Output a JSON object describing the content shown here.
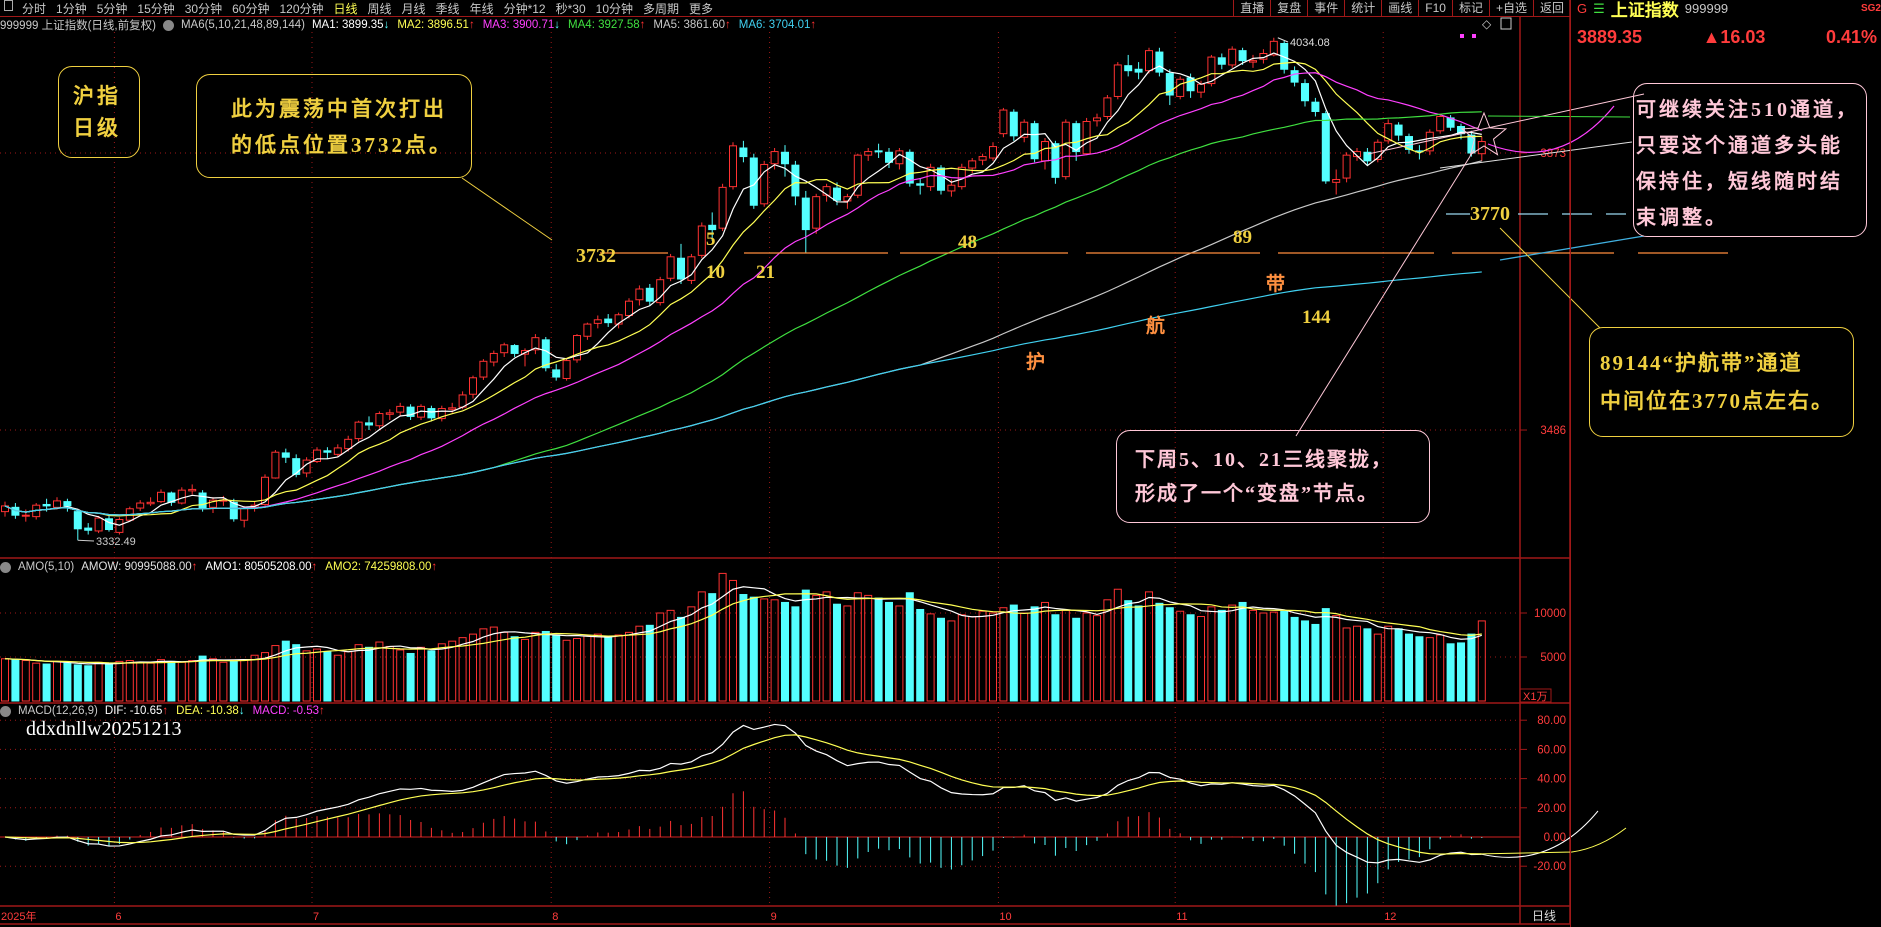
{
  "toolbar": {
    "periods": [
      "分时",
      "1分钟",
      "5分钟",
      "15分钟",
      "30分钟",
      "60分钟",
      "120分钟",
      "日线",
      "周线",
      "月线",
      "季线",
      "年线",
      "分钟*12",
      "秒*30",
      "10分钟",
      "多周期",
      "更多"
    ],
    "active": "日线",
    "right_buttons": [
      "直播",
      "复盘",
      "事件",
      "统计",
      "画线",
      "F10",
      "标记",
      "+自选",
      "返回"
    ]
  },
  "legend": {
    "title": "999999 上证指数(日线,前复权)",
    "indicator": "MA6(5,10,21,48,89,144)",
    "ma": [
      {
        "label": "MA1: 3899.35",
        "dir": "down",
        "color": "#ffffff"
      },
      {
        "label": "MA2: 3896.51",
        "dir": "up",
        "color": "#ffff54"
      },
      {
        "label": "MA3: 3900.71",
        "dir": "down",
        "color": "#ff40ff"
      },
      {
        "label": "MA4: 3927.58",
        "dir": "up",
        "color": "#40e040"
      },
      {
        "label": "MA5: 3861.60",
        "dir": "up",
        "color": "#c8c8c8"
      },
      {
        "label": "MA6: 3704.01",
        "dir": "up",
        "color": "#40d0f0"
      }
    ]
  },
  "amo_legend": {
    "title": "AMO(5,10)",
    "items": [
      {
        "label": "AMOW: 90995088.00",
        "dir": "up",
        "color": "#e0e0e0"
      },
      {
        "label": "AMO1: 80505208.00",
        "dir": "up",
        "color": "#ffffff"
      },
      {
        "label": "AMO2: 74259808.00",
        "dir": "up",
        "color": "#ffff54"
      }
    ]
  },
  "macd_legend": {
    "title": "MACD(12,26,9)",
    "items": [
      {
        "label": "DIF: -10.65",
        "dir": "up",
        "color": "#ffffff"
      },
      {
        "label": "DEA: -10.38",
        "dir": "down",
        "color": "#ffff54"
      },
      {
        "label": "MACD: -0.53",
        "dir": "up",
        "color": "#ff40ff"
      }
    ]
  },
  "quote": {
    "market_icon": "G",
    "menu_icon": "☰",
    "name": "上证指数",
    "code": "999999",
    "tag": "SG2",
    "price": "3889.35",
    "change": "▲16.03",
    "pct": "0.41%"
  },
  "notes": {
    "level_box": [
      "沪指",
      "日级"
    ],
    "low_box": [
      "此为震荡中首次打出",
      "的低点位置3732点。"
    ],
    "node_box": [
      "下周5、10、21三线聚拢，",
      "形成了一个“变盘”节点。"
    ],
    "channel_box": [
      "可继续关注510通道，",
      "只要这个通道多头能",
      "保持住，短线随时结",
      "束调整。"
    ],
    "band_box": [
      "89144“护航带”通道",
      "中间位在3770点左右。"
    ],
    "labels": {
      "l3732": "3732",
      "ma5": "5",
      "ma10": "10",
      "ma21": "21",
      "ma48": "48",
      "ma89": "89",
      "ma144": "144",
      "hu": "护",
      "hang": "航",
      "dai": "带",
      "l3770": "3770"
    },
    "watermark": "ddxdnllw20251213"
  },
  "colors": {
    "up": "#ff3232",
    "down": "#54ffff",
    "grid": "#a01818",
    "axis_text": "#ff3c3c",
    "note_yellow": "#f0d040",
    "note_pink": "#ffc8d8"
  },
  "chart_data": {
    "type": "candlestick",
    "title": "999999 上证指数(日线,前复权)",
    "x_labels": [
      {
        "index": 0,
        "label": "2025年"
      },
      {
        "index": 11,
        "label": "6"
      },
      {
        "index": 30,
        "label": "7"
      },
      {
        "index": 53,
        "label": "8"
      },
      {
        "index": 74,
        "label": "9"
      },
      {
        "index": 96,
        "label": "10"
      },
      {
        "index": 113,
        "label": "11"
      },
      {
        "index": 133,
        "label": "12"
      }
    ],
    "period_label": "日线",
    "price_ticks": [
      "3873",
      "3486"
    ],
    "price_range": [
      3311,
      4042
    ],
    "high_label": "4034.08",
    "low_label": "3332.49",
    "amount_unit": "X1万",
    "amount_ticks": [
      "10000",
      "5000"
    ],
    "macd_ticks": [
      "80.00",
      "60.00",
      "40.00",
      "20.00",
      "0.00",
      "-20.00"
    ],
    "ma_periods": [
      5,
      10,
      21,
      48,
      89,
      144
    ],
    "ref_lines": [
      3732,
      3770
    ],
    "ohlc": [
      [
        3372,
        3386,
        3365,
        3380
      ],
      [
        3378,
        3384,
        3362,
        3367
      ],
      [
        3366,
        3375,
        3358,
        3367
      ],
      [
        3365,
        3384,
        3361,
        3381
      ],
      [
        3382,
        3390,
        3372,
        3380
      ],
      [
        3378,
        3392,
        3375,
        3387
      ],
      [
        3386,
        3390,
        3372,
        3380
      ],
      [
        3372,
        3376,
        3332,
        3348
      ],
      [
        3349,
        3356,
        3340,
        3346
      ],
      [
        3345,
        3366,
        3342,
        3363
      ],
      [
        3362,
        3368,
        3344,
        3347
      ],
      [
        3343,
        3364,
        3340,
        3361
      ],
      [
        3360,
        3379,
        3358,
        3376
      ],
      [
        3377,
        3388,
        3373,
        3384
      ],
      [
        3383,
        3392,
        3380,
        3385
      ],
      [
        3386,
        3403,
        3384,
        3399
      ],
      [
        3398,
        3400,
        3380,
        3385
      ],
      [
        3384,
        3406,
        3382,
        3402
      ],
      [
        3401,
        3410,
        3396,
        3403
      ],
      [
        3398,
        3402,
        3372,
        3377
      ],
      [
        3378,
        3392,
        3370,
        3388
      ],
      [
        3387,
        3394,
        3380,
        3388
      ],
      [
        3385,
        3390,
        3358,
        3362
      ],
      [
        3360,
        3380,
        3350,
        3377
      ],
      [
        3378,
        3386,
        3372,
        3381
      ],
      [
        3382,
        3424,
        3380,
        3420
      ],
      [
        3419,
        3458,
        3418,
        3455
      ],
      [
        3454,
        3460,
        3440,
        3448
      ],
      [
        3446,
        3452,
        3420,
        3424
      ],
      [
        3426,
        3448,
        3420,
        3444
      ],
      [
        3442,
        3462,
        3440,
        3458
      ],
      [
        3457,
        3462,
        3446,
        3455
      ],
      [
        3452,
        3466,
        3448,
        3461
      ],
      [
        3460,
        3478,
        3456,
        3473
      ],
      [
        3474,
        3499,
        3470,
        3497
      ],
      [
        3496,
        3505,
        3486,
        3493
      ],
      [
        3492,
        3512,
        3488,
        3509
      ],
      [
        3508,
        3515,
        3500,
        3510
      ],
      [
        3511,
        3524,
        3505,
        3519
      ],
      [
        3518,
        3522,
        3500,
        3505
      ],
      [
        3504,
        3522,
        3500,
        3519
      ],
      [
        3516,
        3520,
        3498,
        3503
      ],
      [
        3502,
        3520,
        3498,
        3516
      ],
      [
        3515,
        3524,
        3510,
        3517
      ],
      [
        3518,
        3540,
        3515,
        3535
      ],
      [
        3536,
        3562,
        3530,
        3559
      ],
      [
        3560,
        3585,
        3556,
        3582
      ],
      [
        3581,
        3597,
        3575,
        3593
      ],
      [
        3594,
        3608,
        3588,
        3605
      ],
      [
        3604,
        3606,
        3588,
        3593
      ],
      [
        3592,
        3600,
        3575,
        3597
      ],
      [
        3598,
        3620,
        3592,
        3615
      ],
      [
        3612,
        3616,
        3568,
        3573
      ],
      [
        3570,
        3578,
        3555,
        3560
      ],
      [
        3558,
        3586,
        3555,
        3583
      ],
      [
        3584,
        3620,
        3580,
        3618
      ],
      [
        3617,
        3636,
        3612,
        3634
      ],
      [
        3635,
        3646,
        3628,
        3640
      ],
      [
        3641,
        3648,
        3630,
        3636
      ],
      [
        3634,
        3650,
        3628,
        3647
      ],
      [
        3646,
        3670,
        3642,
        3666
      ],
      [
        3668,
        3688,
        3660,
        3683
      ],
      [
        3684,
        3690,
        3660,
        3666
      ],
      [
        3664,
        3700,
        3660,
        3696
      ],
      [
        3698,
        3732,
        3694,
        3728
      ],
      [
        3726,
        3746,
        3690,
        3697
      ],
      [
        3695,
        3732,
        3690,
        3728
      ],
      [
        3730,
        3776,
        3726,
        3771
      ],
      [
        3772,
        3790,
        3750,
        3766
      ],
      [
        3768,
        3830,
        3764,
        3825
      ],
      [
        3826,
        3888,
        3822,
        3883
      ],
      [
        3880,
        3890,
        3860,
        3868
      ],
      [
        3866,
        3872,
        3795,
        3800
      ],
      [
        3802,
        3862,
        3798,
        3857
      ],
      [
        3858,
        3880,
        3850,
        3875
      ],
      [
        3874,
        3884,
        3840,
        3858
      ],
      [
        3856,
        3862,
        3800,
        3813
      ],
      [
        3810,
        3820,
        3733,
        3766
      ],
      [
        3768,
        3816,
        3760,
        3812
      ],
      [
        3814,
        3830,
        3805,
        3826
      ],
      [
        3824,
        3832,
        3800,
        3807
      ],
      [
        3806,
        3816,
        3795,
        3812
      ],
      [
        3814,
        3872,
        3810,
        3870
      ],
      [
        3870,
        3880,
        3862,
        3875
      ],
      [
        3876,
        3886,
        3866,
        3875
      ],
      [
        3874,
        3880,
        3852,
        3860
      ],
      [
        3858,
        3880,
        3850,
        3876
      ],
      [
        3874,
        3878,
        3826,
        3831
      ],
      [
        3830,
        3838,
        3815,
        3828
      ],
      [
        3826,
        3858,
        3820,
        3853
      ],
      [
        3852,
        3856,
        3815,
        3821
      ],
      [
        3820,
        3836,
        3812,
        3828
      ],
      [
        3826,
        3858,
        3822,
        3853
      ],
      [
        3852,
        3866,
        3845,
        3862
      ],
      [
        3863,
        3872,
        3856,
        3868
      ],
      [
        3866,
        3888,
        3862,
        3882
      ],
      [
        3900,
        3936,
        3895,
        3933
      ],
      [
        3930,
        3934,
        3890,
        3897
      ],
      [
        3895,
        3920,
        3888,
        3916
      ],
      [
        3914,
        3918,
        3860,
        3865
      ],
      [
        3862,
        3894,
        3850,
        3889
      ],
      [
        3886,
        3890,
        3830,
        3839
      ],
      [
        3840,
        3920,
        3836,
        3916
      ],
      [
        3914,
        3918,
        3862,
        3875
      ],
      [
        3872,
        3922,
        3870,
        3917
      ],
      [
        3918,
        3928,
        3910,
        3922
      ],
      [
        3924,
        3954,
        3920,
        3950
      ],
      [
        3952,
        4000,
        3948,
        3996
      ],
      [
        3995,
        4010,
        3980,
        3988
      ],
      [
        3990,
        4000,
        3976,
        3986
      ],
      [
        3988,
        4020,
        3984,
        4016
      ],
      [
        4014,
        4020,
        3980,
        3986
      ],
      [
        3984,
        3990,
        3940,
        3954
      ],
      [
        3952,
        3980,
        3948,
        3976
      ],
      [
        3978,
        3984,
        3950,
        3960
      ],
      [
        3958,
        3974,
        3950,
        3969
      ],
      [
        3970,
        4010,
        3966,
        4007
      ],
      [
        4006,
        4012,
        3990,
        3997
      ],
      [
        3996,
        4022,
        3992,
        4018
      ],
      [
        4016,
        4020,
        3996,
        4002
      ],
      [
        4000,
        4010,
        3992,
        4002
      ],
      [
        4004,
        4018,
        3998,
        4012
      ],
      [
        4010,
        4034,
        4008,
        4029
      ],
      [
        4026,
        4030,
        3984,
        3990
      ],
      [
        3988,
        3994,
        3966,
        3972
      ],
      [
        3970,
        3976,
        3938,
        3946
      ],
      [
        3944,
        3950,
        3924,
        3931
      ],
      [
        3928,
        3932,
        3830,
        3834
      ],
      [
        3832,
        3850,
        3815,
        3836
      ],
      [
        3838,
        3874,
        3832,
        3870
      ],
      [
        3868,
        3880,
        3862,
        3875
      ],
      [
        3874,
        3880,
        3856,
        3862
      ],
      [
        3864,
        3892,
        3860,
        3888
      ],
      [
        3890,
        3920,
        3886,
        3914
      ],
      [
        3912,
        3916,
        3890,
        3898
      ],
      [
        3896,
        3900,
        3872,
        3878
      ],
      [
        3876,
        3884,
        3864,
        3875
      ],
      [
        3876,
        3906,
        3870,
        3902
      ],
      [
        3904,
        3928,
        3900,
        3924
      ],
      [
        3922,
        3926,
        3904,
        3909
      ],
      [
        3910,
        3914,
        3892,
        3900
      ],
      [
        3898,
        3904,
        3868,
        3873
      ],
      [
        3872,
        3896,
        3862,
        3889
      ]
    ],
    "amount": [
      4800,
      4700,
      4600,
      4300,
      4200,
      4500,
      4300,
      4100,
      4000,
      4400,
      4300,
      4500,
      4600,
      4400,
      4300,
      4700,
      4500,
      4400,
      4600,
      5100,
      4800,
      4400,
      4500,
      4700,
      5200,
      5500,
      6300,
      6800,
      6400,
      5700,
      5900,
      5600,
      5200,
      5600,
      6400,
      6100,
      6700,
      6200,
      5800,
      5400,
      6100,
      5700,
      6500,
      6800,
      7200,
      7600,
      8200,
      8400,
      7800,
      7300,
      7000,
      7800,
      7900,
      7500,
      6900,
      7100,
      7400,
      7600,
      7300,
      7500,
      7800,
      8500,
      8600,
      10000,
      10300,
      9500,
      10700,
      12400,
      12200,
      14500,
      13700,
      12100,
      11800,
      11600,
      11500,
      11200,
      10700,
      12600,
      12000,
      12400,
      11000,
      10800,
      12300,
      12000,
      11700,
      11200,
      10800,
      12300,
      10400,
      9900,
      9400,
      9100,
      9800,
      9600,
      10200,
      10000,
      10600,
      10900,
      10000,
      10700,
      11200,
      9800,
      10300,
      9400,
      10000,
      9700,
      11500,
      12700,
      11400,
      10800,
      12400,
      11100,
      10600,
      10200,
      9800,
      9600,
      10700,
      10300,
      10900,
      11200,
      10300,
      10000,
      10100,
      10200,
      9500,
      9100,
      8700,
      10500,
      9700,
      8300,
      8500,
      8200,
      7600,
      8500,
      8200,
      7600,
      7300,
      7200,
      7500,
      6500,
      6600,
      7600,
      9100
    ]
  }
}
